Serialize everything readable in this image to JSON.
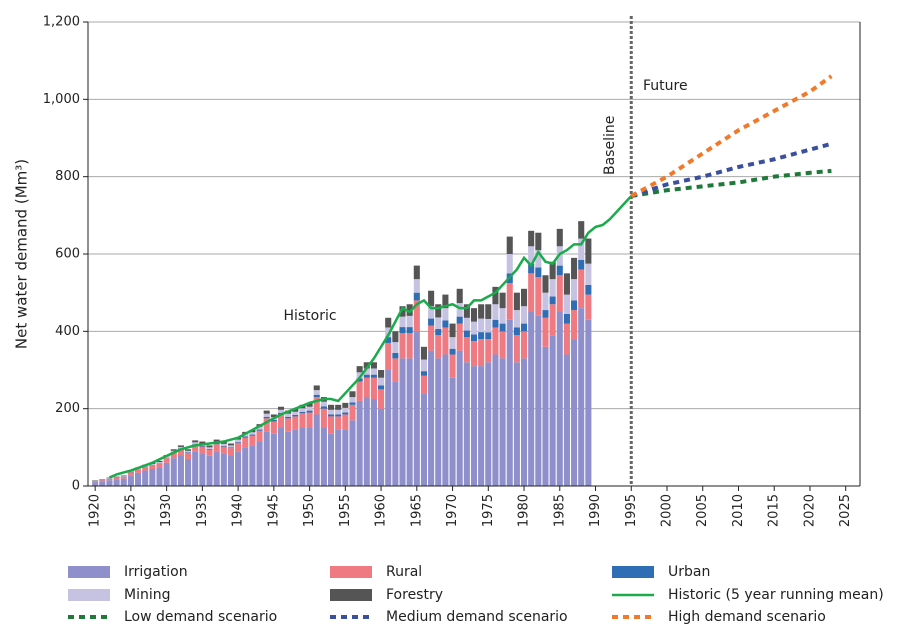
{
  "chart_data": {
    "type": "bar",
    "ylabel": "Net water demand (Mm³)",
    "annotations": [
      "Historic",
      "Baseline",
      "Future"
    ],
    "baseline": 1995,
    "xlim": [
      1919,
      2027
    ],
    "xticks": [
      1920,
      1925,
      1930,
      1935,
      1940,
      1945,
      1950,
      1955,
      1960,
      1965,
      1970,
      1975,
      1980,
      1985,
      1990,
      1995,
      2000,
      2005,
      2010,
      2015,
      2020,
      2025
    ],
    "ylim": [
      0,
      1200
    ],
    "yticks": [
      0,
      200,
      400,
      600,
      800,
      {
        "value": 1000,
        "label": "1,000"
      },
      {
        "value": 1200,
        "label": "1,200"
      }
    ],
    "grid": true,
    "stacked": true,
    "x": [
      1920,
      1921,
      1922,
      1923,
      1924,
      1925,
      1926,
      1927,
      1928,
      1929,
      1930,
      1931,
      1932,
      1933,
      1934,
      1935,
      1936,
      1937,
      1938,
      1939,
      1940,
      1941,
      1942,
      1943,
      1944,
      1945,
      1946,
      1947,
      1948,
      1949,
      1950,
      1951,
      1952,
      1953,
      1954,
      1955,
      1956,
      1957,
      1958,
      1959,
      1960,
      1961,
      1962,
      1963,
      1964,
      1965,
      1966,
      1967,
      1968,
      1969,
      1970,
      1971,
      1972,
      1973,
      1974,
      1975,
      1976,
      1977,
      1978,
      1979,
      1980,
      1981,
      1982,
      1983,
      1984,
      1985,
      1986,
      1987,
      1988,
      1989
    ],
    "series": [
      {
        "name": "Irrigation",
        "color": "#8e8fcb",
        "kind": "bar",
        "values": [
          10,
          12,
          15,
          17,
          19,
          28,
          34,
          40,
          44,
          48,
          60,
          72,
          80,
          70,
          90,
          85,
          78,
          90,
          85,
          80,
          90,
          100,
          105,
          115,
          140,
          135,
          150,
          140,
          145,
          150,
          150,
          185,
          150,
          135,
          145,
          145,
          170,
          220,
          230,
          225,
          200,
          300,
          270,
          330,
          330,
          400,
          240,
          350,
          330,
          340,
          280,
          350,
          320,
          310,
          310,
          320,
          340,
          330,
          430,
          320,
          330,
          450,
          440,
          360,
          390,
          450,
          340,
          380,
          460,
          430
        ]
      },
      {
        "name": "Rural",
        "color": "#ef7a82",
        "kind": "bar",
        "values": [
          3,
          3,
          4,
          5,
          5,
          7,
          8,
          9,
          9,
          10,
          12,
          14,
          15,
          15,
          16,
          17,
          16,
          18,
          17,
          18,
          22,
          25,
          25,
          28,
          35,
          32,
          35,
          35,
          35,
          38,
          40,
          45,
          50,
          45,
          35,
          40,
          40,
          50,
          50,
          55,
          50,
          70,
          60,
          65,
          65,
          80,
          45,
          65,
          60,
          70,
          60,
          70,
          65,
          65,
          70,
          60,
          70,
          70,
          95,
          70,
          70,
          100,
          100,
          75,
          80,
          95,
          80,
          75,
          100,
          65
        ]
      },
      {
        "name": "Urban",
        "color": "#2f6db5",
        "kind": "bar",
        "values": [
          0,
          1,
          1,
          1,
          1,
          1,
          1,
          1,
          1,
          1,
          1,
          1,
          2,
          2,
          2,
          2,
          2,
          2,
          2,
          2,
          2,
          3,
          3,
          3,
          4,
          4,
          4,
          4,
          4,
          4,
          5,
          6,
          6,
          5,
          5,
          5,
          6,
          8,
          8,
          8,
          10,
          15,
          14,
          16,
          16,
          20,
          12,
          18,
          16,
          18,
          15,
          18,
          17,
          17,
          18,
          17,
          20,
          20,
          25,
          20,
          20,
          25,
          25,
          20,
          20,
          25,
          25,
          25,
          25,
          25
        ]
      },
      {
        "name": "Mining",
        "color": "#c5c2e2",
        "kind": "bar",
        "values": [
          1,
          1,
          1,
          1,
          2,
          2,
          3,
          3,
          3,
          3,
          4,
          4,
          4,
          4,
          5,
          5,
          4,
          5,
          5,
          5,
          6,
          6,
          6,
          7,
          8,
          7,
          8,
          8,
          8,
          9,
          10,
          12,
          12,
          12,
          12,
          12,
          14,
          16,
          16,
          16,
          20,
          25,
          28,
          27,
          29,
          35,
          30,
          32,
          30,
          32,
          30,
          35,
          33,
          33,
          35,
          35,
          40,
          40,
          50,
          45,
          45,
          45,
          45,
          45,
          45,
          50,
          50,
          55,
          55,
          55
        ]
      },
      {
        "name": "Forestry",
        "color": "#555555",
        "kind": "bar",
        "values": [
          1,
          1,
          1,
          1,
          1,
          2,
          2,
          2,
          3,
          3,
          3,
          4,
          4,
          4,
          5,
          6,
          5,
          5,
          6,
          5,
          5,
          6,
          6,
          7,
          8,
          7,
          8,
          8,
          8,
          9,
          10,
          12,
          12,
          13,
          13,
          13,
          15,
          16,
          16,
          16,
          20,
          25,
          28,
          27,
          30,
          35,
          33,
          40,
          34,
          35,
          35,
          37,
          35,
          35,
          37,
          38,
          45,
          40,
          45,
          45,
          45,
          40,
          45,
          45,
          45,
          45,
          55,
          55,
          45,
          65
        ]
      },
      {
        "name": "Historic (5 year running mean)",
        "color": "#1aab4b",
        "kind": "line",
        "dashed": false,
        "x": [
          1922,
          1923,
          1925,
          1928,
          1930,
          1932,
          1934,
          1936,
          1938,
          1940,
          1942,
          1944,
          1946,
          1948,
          1950,
          1952,
          1953,
          1954,
          1955,
          1957,
          1959,
          1961,
          1963,
          1964,
          1965,
          1966,
          1967,
          1968,
          1969,
          1970,
          1971,
          1972,
          1973,
          1974,
          1975,
          1976,
          1977,
          1978,
          1979,
          1980,
          1981,
          1982,
          1983,
          1984,
          1985,
          1986,
          1987,
          1988,
          1989,
          1990,
          1991,
          1992,
          1993,
          1994,
          1995
        ],
        "values": [
          22,
          30,
          40,
          60,
          78,
          95,
          105,
          110,
          115,
          125,
          145,
          165,
          185,
          200,
          215,
          225,
          225,
          220,
          240,
          280,
          330,
          390,
          460,
          450,
          470,
          480,
          460,
          460,
          465,
          470,
          460,
          460,
          480,
          480,
          490,
          500,
          520,
          540,
          560,
          590,
          570,
          605,
          580,
          575,
          600,
          610,
          625,
          625,
          655,
          670,
          675,
          690,
          710,
          730,
          750
        ]
      },
      {
        "name": "Low demand scenario",
        "color": "#1f7a3a",
        "kind": "line",
        "dashed": true,
        "x": [
          1995,
          2000,
          2005,
          2010,
          2015,
          2020,
          2023
        ],
        "values": [
          750,
          765,
          775,
          785,
          800,
          810,
          815
        ]
      },
      {
        "name": "Medium demand scenario",
        "color": "#3a4fa0",
        "kind": "line",
        "dashed": true,
        "x": [
          1995,
          2000,
          2005,
          2010,
          2015,
          2020,
          2023
        ],
        "values": [
          750,
          780,
          800,
          825,
          845,
          870,
          885
        ]
      },
      {
        "name": "High demand scenario",
        "color": "#f07a2a",
        "kind": "line",
        "dashed": true,
        "x": [
          1995,
          2000,
          2005,
          2010,
          2015,
          2020,
          2023
        ],
        "values": [
          750,
          800,
          860,
          920,
          970,
          1020,
          1060
        ]
      }
    ]
  }
}
